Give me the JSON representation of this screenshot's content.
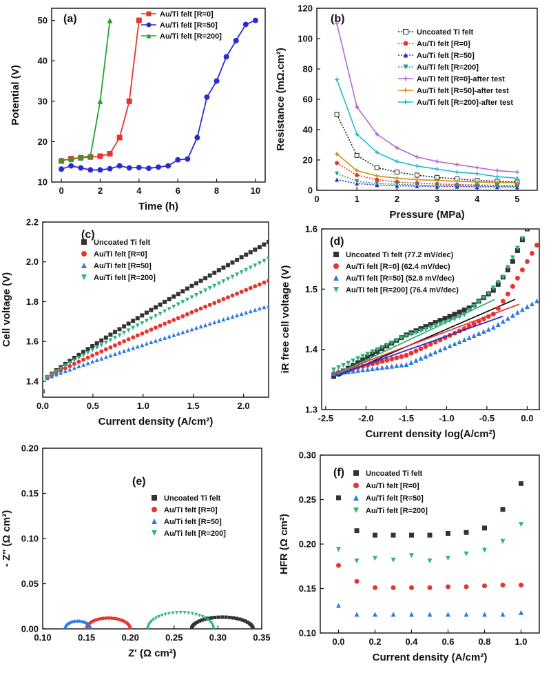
{
  "chart_data": [
    {
      "panel_label": "(a)",
      "type": "line",
      "xlabel": "Time (h)",
      "ylabel": "Potential (V)",
      "xlim": [
        -0.5,
        10.5
      ],
      "ylim": [
        10,
        53
      ],
      "xticks": [
        0,
        2,
        4,
        6,
        8,
        10
      ],
      "yticks": [
        10,
        20,
        30,
        40,
        50
      ],
      "legend_position": "top-left",
      "series": [
        {
          "name": "Au/Ti felt [R=0]",
          "color": "#e8342f",
          "marker": "square",
          "dash": "none",
          "x": [
            0,
            0.5,
            1,
            1.5,
            2,
            2.5,
            3,
            3.5,
            4
          ],
          "y": [
            15.2,
            15.8,
            16,
            16.2,
            16.4,
            17,
            21,
            30,
            50
          ]
        },
        {
          "name": "Au/Ti felt [R=50]",
          "color": "#2b2bd6",
          "marker": "circle",
          "dash": "none",
          "x": [
            0,
            0.5,
            1,
            1.5,
            2,
            2.5,
            3,
            3.5,
            4,
            4.5,
            5,
            5.5,
            6,
            6.5,
            7,
            7.5,
            8,
            8.5,
            9,
            9.5,
            10
          ],
          "y": [
            13.2,
            14,
            13.5,
            13,
            13,
            13.3,
            14,
            13.5,
            13.6,
            13.4,
            13.7,
            14,
            15.5,
            15.7,
            21,
            31,
            35,
            41,
            45,
            49,
            50
          ]
        },
        {
          "name": "Au/Ti felt [R=200]",
          "color": "#21a32e",
          "marker": "triangle",
          "dash": "none",
          "x": [
            0,
            0.5,
            1,
            1.5,
            2,
            2.5
          ],
          "y": [
            15.5,
            15.6,
            16,
            16.5,
            30,
            50
          ]
        }
      ]
    },
    {
      "panel_label": "(b)",
      "type": "line",
      "xlabel": "Pressure (MPa)",
      "ylabel": "Resistance (mΩ.cm²)",
      "xlim": [
        0,
        5.5
      ],
      "ylim": [
        0,
        120
      ],
      "xticks": [
        0,
        1,
        2,
        3,
        4,
        5
      ],
      "yticks": [
        0,
        20,
        40,
        60,
        80,
        100,
        120
      ],
      "legend_position": "top-right",
      "x": [
        0.5,
        1,
        1.5,
        2,
        2.5,
        3,
        3.5,
        4,
        4.5,
        5
      ],
      "series": [
        {
          "name": "Uncoated Ti felt",
          "color": "#222222",
          "marker": "square-open",
          "dash": "2,2",
          "values": [
            50,
            23,
            15,
            12,
            10,
            8.5,
            7.5,
            6.5,
            6,
            5.5
          ]
        },
        {
          "name": "Au/Ti felt [R=0]",
          "color": "#e8342f",
          "marker": "circle",
          "dash": "2,2",
          "values": [
            18,
            10,
            7,
            5.5,
            4.7,
            4.2,
            3.8,
            3.5,
            3.3,
            3.2
          ]
        },
        {
          "name": "Au/Ti felt [R=50]",
          "color": "#2b2bd6",
          "marker": "triangle",
          "dash": "2,2",
          "values": [
            7,
            4.5,
            3.5,
            3,
            2.7,
            2.5,
            2.4,
            2.3,
            2.2,
            2.1
          ]
        },
        {
          "name": "Au/Ti felt [R=200]",
          "color": "#1f9a86",
          "marker": "triangle-down",
          "dash": "2,2",
          "values": [
            11,
            6,
            4.5,
            4,
            3.5,
            3.2,
            3,
            2.9,
            2.8,
            2.7
          ]
        },
        {
          "name": "Au/Ti felt [R=0]-after test",
          "color": "#b566d6",
          "marker": "star",
          "dash": "none",
          "values": [
            110,
            55,
            37,
            28,
            22,
            19,
            17,
            15,
            13,
            12
          ]
        },
        {
          "name": "Au/Ti felt [R=50]-after test",
          "color": "#c9901a",
          "marker": "star",
          "dash": "none",
          "values": [
            24,
            13,
            9.5,
            8,
            7,
            6.5,
            6,
            5.5,
            5.2,
            5
          ]
        },
        {
          "name": "Au/Ti felt [R=200]-after test",
          "color": "#1fbbd0",
          "marker": "star",
          "dash": "none",
          "values": [
            73,
            37,
            25,
            19,
            16,
            14,
            12,
            11,
            9,
            8
          ]
        }
      ]
    },
    {
      "panel_label": "(c)",
      "type": "scatter",
      "xlabel": "Current density (A/cm²)",
      "ylabel": "Cell voltage (V)",
      "xlim": [
        0,
        2.25
      ],
      "ylim": [
        1.32,
        2.2
      ],
      "xticks": [
        0.0,
        0.5,
        1.0,
        1.5,
        2.0
      ],
      "yticks": [
        1.4,
        1.6,
        1.8,
        2.0,
        2.2
      ],
      "legend_position": "top-left",
      "series": [
        {
          "name": "Uncoated Ti felt",
          "color": "#333333",
          "marker": "square",
          "x": [
            0,
            0.02,
            2.25
          ],
          "y": [
            1.35,
            1.41,
            2.1
          ]
        },
        {
          "name": "Au/Ti felt [R=0]",
          "color": "#e8342f",
          "marker": "circle",
          "x": [
            0,
            0.02,
            2.25
          ],
          "y": [
            1.35,
            1.41,
            1.905
          ]
        },
        {
          "name": "Au/Ti felt [R=50]",
          "color": "#2c7be0",
          "marker": "triangle",
          "x": [
            0,
            0.02,
            2.25
          ],
          "y": [
            1.35,
            1.41,
            1.78
          ]
        },
        {
          "name": "Au/Ti felt [R=200]",
          "color": "#2fb27c",
          "marker": "triangle-down",
          "x": [
            0,
            0.02,
            2.25
          ],
          "y": [
            1.35,
            1.41,
            2.015
          ]
        }
      ]
    },
    {
      "panel_label": "(d)",
      "type": "scatter",
      "xlabel": "Current density log(A/cm²)",
      "ylabel": "iR free cell voltage (V)",
      "xlim": [
        -2.55,
        0.15
      ],
      "ylim": [
        1.3,
        1.6
      ],
      "xticks": [
        -2.5,
        -2.0,
        -1.5,
        -1.0,
        -0.5,
        0.0
      ],
      "yticks": [
        1.3,
        1.4,
        1.5,
        1.6
      ],
      "legend_position": "top-left",
      "series": [
        {
          "name": "Uncoated Ti felt (77.2 mV/dec)",
          "color": "#333333",
          "marker": "square",
          "x": [
            -2.4,
            -1.5,
            -0.7,
            -0.4,
            -0.2,
            0.0
          ],
          "y": [
            1.355,
            1.424,
            1.47,
            1.5,
            1.54,
            1.6
          ],
          "fit": {
            "x": [
              -2.35,
              -0.15
            ],
            "y": [
              1.355,
              1.483
            ]
          }
        },
        {
          "name": "Au/Ti felt [R=0] (62.4 mV/dec)",
          "color": "#e8342f",
          "marker": "circle",
          "x": [
            -2.4,
            -1.5,
            -0.8,
            -0.4,
            -0.2,
            0.15
          ],
          "y": [
            1.36,
            1.39,
            1.433,
            1.46,
            1.5,
            1.58
          ],
          "fit": {
            "x": [
              -2.35,
              -0.1
            ],
            "y": [
              1.362,
              1.475
            ]
          }
        },
        {
          "name": "Au/Ti felt [R=50] (52.8 mV/dec)",
          "color": "#2c7be0",
          "marker": "triangle",
          "x": [
            -2.4,
            -1.5,
            -0.8,
            -0.4,
            -0.2,
            0.15
          ],
          "y": [
            1.36,
            1.375,
            1.415,
            1.438,
            1.455,
            1.483
          ],
          "fit": {
            "x": [
              -2.35,
              -0.3
            ],
            "y": [
              1.358,
              1.455
            ]
          }
        },
        {
          "name": "Au/Ti felt [R=200] (76.4 mV/dec)",
          "color": "#2fb27c",
          "marker": "triangle-down",
          "x": [
            -2.4,
            -1.5,
            -0.8,
            -0.5,
            -0.3,
            0.0
          ],
          "y": [
            1.366,
            1.422,
            1.455,
            1.49,
            1.52,
            1.6
          ],
          "fit": {
            "x": [
              -2.35,
              -0.4
            ],
            "y": [
              1.36,
              1.483
            ]
          }
        }
      ]
    },
    {
      "panel_label": "(e)",
      "type": "scatter",
      "xlabel": "Z' (Ω cm²)",
      "ylabel": "- Z'' (Ω cm²)",
      "xlim": [
        0.1,
        0.35
      ],
      "ylim": [
        0,
        0.2
      ],
      "xticks": [
        0.1,
        0.15,
        0.2,
        0.25,
        0.3,
        0.35
      ],
      "yticks": [
        0.0,
        0.05,
        0.1,
        0.15,
        0.2
      ],
      "legend_position": "center-right",
      "series": [
        {
          "name": "Uncoated Ti felt",
          "color": "#333333",
          "marker": "square",
          "arc": {
            "x_start": 0.27,
            "x_end": 0.34,
            "z_peak": 0.013
          }
        },
        {
          "name": "Au/Ti felt [R=0]",
          "color": "#e8342f",
          "marker": "circle",
          "arc": {
            "x_start": 0.15,
            "x_end": 0.2,
            "z_peak": 0.012
          }
        },
        {
          "name": "Au/Ti felt [R=50]",
          "color": "#2c7be0",
          "marker": "triangle",
          "arc": {
            "x_start": 0.125,
            "x_end": 0.155,
            "z_peak": 0.009
          }
        },
        {
          "name": "Au/Ti felt [R=200]",
          "color": "#2fb27c",
          "marker": "triangle-down",
          "arc": {
            "x_start": 0.22,
            "x_end": 0.295,
            "z_peak": 0.018
          }
        }
      ]
    },
    {
      "panel_label": "(f)",
      "type": "scatter",
      "xlabel": "Current density (A/cm²)",
      "ylabel": "HFR (Ω cm²)",
      "xlim": [
        -0.1,
        1.1
      ],
      "ylim": [
        0.1,
        0.3
      ],
      "xticks": [
        0.0,
        0.2,
        0.4,
        0.6,
        0.8,
        1.0
      ],
      "yticks": [
        0.1,
        0.15,
        0.2,
        0.25,
        0.3
      ],
      "legend_position": "top-center",
      "x": [
        0,
        0.1,
        0.2,
        0.3,
        0.4,
        0.5,
        0.6,
        0.7,
        0.8,
        0.9,
        1.0
      ],
      "series": [
        {
          "name": "Uncoated Ti felt",
          "color": "#333333",
          "marker": "square",
          "values": [
            0.252,
            0.215,
            0.21,
            0.21,
            0.21,
            0.21,
            0.212,
            0.213,
            0.218,
            0.239,
            0.268
          ]
        },
        {
          "name": "Au/Ti felt [R=0]",
          "color": "#e8342f",
          "marker": "circle",
          "values": [
            0.176,
            0.158,
            0.151,
            0.151,
            0.151,
            0.151,
            0.152,
            0.152,
            0.153,
            0.154,
            0.154
          ]
        },
        {
          "name": "Au/Ti felt [R=50]",
          "color": "#2c7be0",
          "marker": "triangle",
          "values": [
            0.131,
            0.121,
            0.121,
            0.121,
            0.121,
            0.121,
            0.121,
            0.121,
            0.121,
            0.121,
            0.123
          ]
        },
        {
          "name": "Au/Ti felt [R=200]",
          "color": "#2fb27c",
          "marker": "triangle-down",
          "values": [
            0.194,
            0.181,
            0.184,
            0.182,
            0.187,
            0.181,
            0.184,
            0.189,
            0.193,
            0.203,
            0.222
          ]
        }
      ]
    }
  ]
}
